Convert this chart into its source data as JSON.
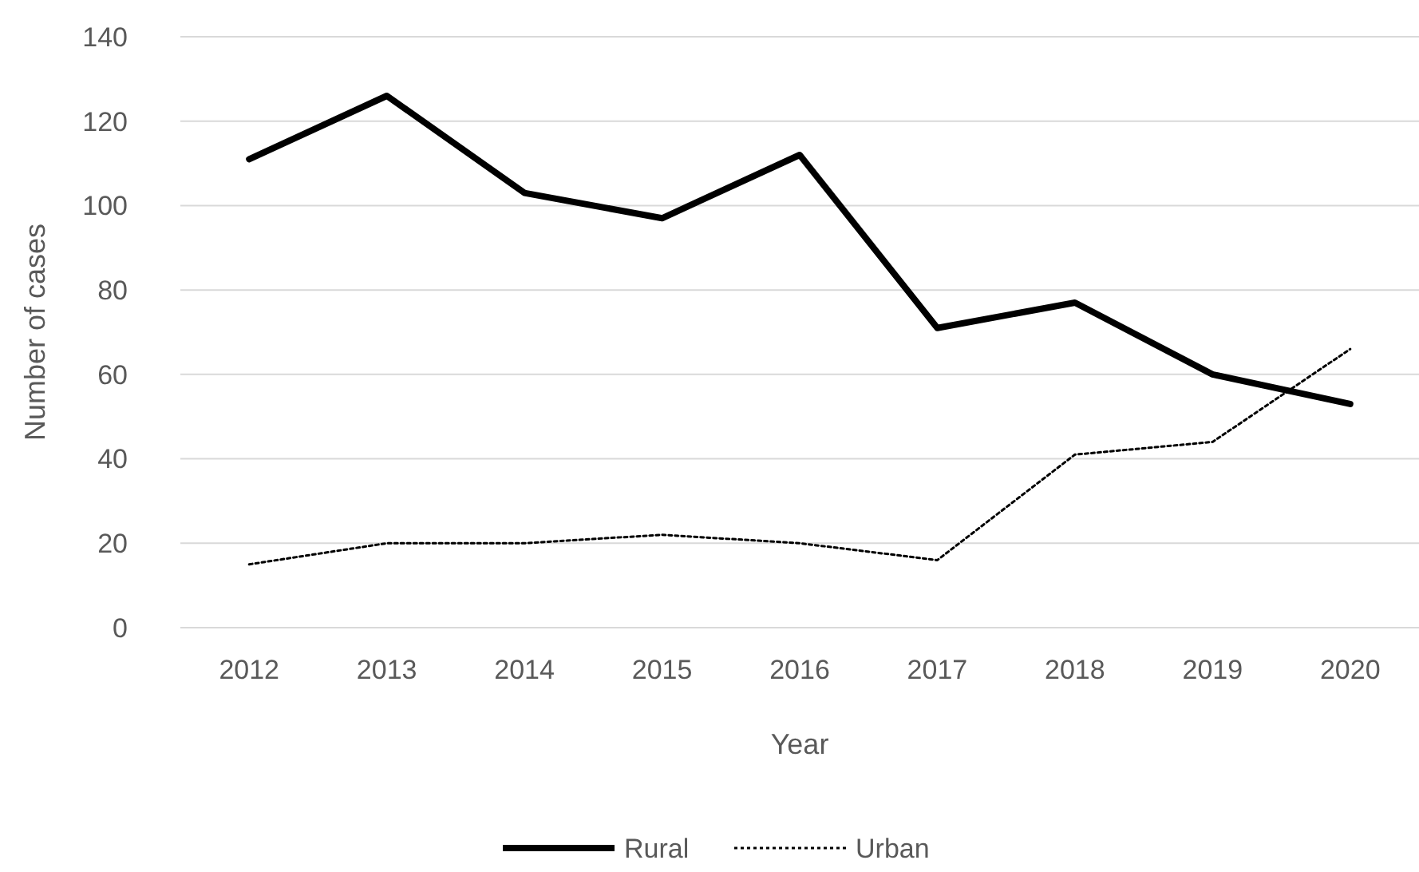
{
  "chart_data": {
    "type": "line",
    "xlabel": "Year",
    "ylabel": "Number of cases",
    "categories": [
      "2012",
      "2013",
      "2014",
      "2015",
      "2016",
      "2017",
      "2018",
      "2019",
      "2020"
    ],
    "series": [
      {
        "name": "Rural",
        "color": "#000000",
        "line_style": "solid",
        "values": [
          111,
          126,
          103,
          97,
          112,
          71,
          77,
          60,
          53
        ]
      },
      {
        "name": "Urban",
        "color": "#000000",
        "line_style": "dotted",
        "values": [
          15,
          20,
          20,
          22,
          20,
          16,
          41,
          44,
          66
        ]
      }
    ],
    "ylim": [
      0,
      140
    ],
    "yticks": [
      0,
      20,
      40,
      60,
      80,
      100,
      120,
      140
    ],
    "grid": "y",
    "legend": "bottom",
    "marker": "none"
  }
}
